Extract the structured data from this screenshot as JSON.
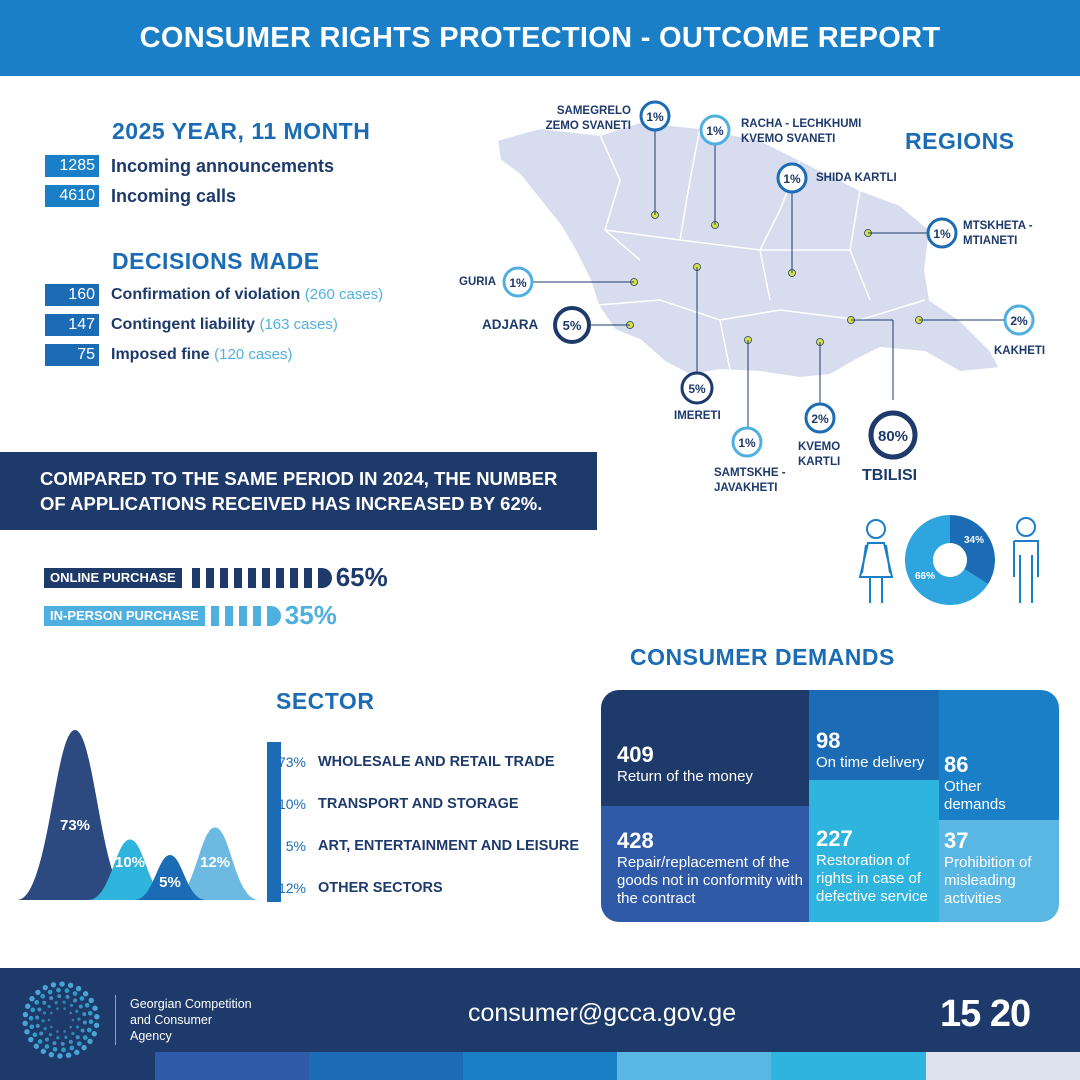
{
  "header": {
    "title": "CONSUMER RIGHTS PROTECTION - OUTCOME REPORT"
  },
  "period": {
    "title": "2025 YEAR, 11 MONTH",
    "items": [
      {
        "value": "1285",
        "label": "Incoming announcements"
      },
      {
        "value": "4610",
        "label": "Incoming calls"
      }
    ]
  },
  "decisions": {
    "title": "DECISIONS MADE",
    "items": [
      {
        "value": "160",
        "label": "Confirmation of violation",
        "note": "(260 cases)"
      },
      {
        "value": "147",
        "label": "Contingent liability",
        "note": "(163 cases)"
      },
      {
        "value": "75",
        "label": "Imposed fine",
        "note": "(120  cases)"
      }
    ]
  },
  "comparison": {
    "line1": "COMPARED TO THE SAME PERIOD IN 2024, THE NUMBER",
    "line2": "OF APPLICATIONS RECEIVED HAS INCREASED BY 62%."
  },
  "purchase": {
    "online": {
      "label": "ONLINE PURCHASE",
      "percent": "65%",
      "value": 65
    },
    "in_person": {
      "label": "IN-PERSON PURCHASE",
      "percent": "35%",
      "value": 35
    }
  },
  "regions": {
    "title": "REGIONS",
    "items": [
      {
        "name": "SAMEGRELO",
        "name2": "ZEMO SVANETI",
        "percent": "1%"
      },
      {
        "name": "RACHA - LECHKHUMI",
        "name2": "KVEMO SVANETI",
        "percent": "1%"
      },
      {
        "name": "SHIDA KARTLI",
        "name2": "",
        "percent": "1%"
      },
      {
        "name": "MTSKHETA -",
        "name2": "MTIANETI",
        "percent": "1%"
      },
      {
        "name": "GURIA",
        "name2": "",
        "percent": "1%"
      },
      {
        "name": "ADJARA",
        "name2": "",
        "percent": "5%"
      },
      {
        "name": "KAKHETI",
        "name2": "",
        "percent": "2%"
      },
      {
        "name": "IMERETI",
        "name2": "",
        "percent": "5%"
      },
      {
        "name": "SAMTSKHE -",
        "name2": "JAVAKHETI",
        "percent": "1%"
      },
      {
        "name": "KVEMO",
        "name2": "KARTLI",
        "percent": "2%"
      },
      {
        "name": "TBILISI",
        "name2": "",
        "percent": "80%"
      }
    ]
  },
  "gender": {
    "female_percent": "66%",
    "male_percent": "34%",
    "female": 66,
    "male": 34
  },
  "sector": {
    "title": "SECTOR",
    "items": [
      {
        "percent": "73%",
        "label": "WHOLESALE AND RETAIL TRADE",
        "value": 73,
        "color": "#2c4a80"
      },
      {
        "percent": "10%",
        "label": "TRANSPORT AND STORAGE",
        "value": 10,
        "color": "#2fb4dd"
      },
      {
        "percent": "5%",
        "label": "ART, ENTERTAINMENT AND LEISURE",
        "value": 5,
        "color": "#1b6cb4"
      },
      {
        "percent": "12%",
        "label": "OTHER SECTORS",
        "value": 12,
        "color": "#6cb9e2"
      }
    ]
  },
  "demands": {
    "title": "CONSUMER DEMANDS",
    "items": [
      {
        "value": "409",
        "label": "Return of the money"
      },
      {
        "value": "98",
        "label": "On time delivery"
      },
      {
        "value": "86",
        "label": "Other demands"
      },
      {
        "value": "428",
        "label": "Repair/replacement of the goods not in conformity with the contract"
      },
      {
        "value": "227",
        "label": "Restoration of rights in case of defective service"
      },
      {
        "value": "37",
        "label": "Prohibition of misleading activities"
      }
    ]
  },
  "footer": {
    "org_line1": "Georgian Competition",
    "org_line2": "and Consumer",
    "org_line3": "Agency",
    "email": "consumer@gcca.gov.ge",
    "hotline": "15 20"
  },
  "colors": {
    "navy": "#1e3a6b",
    "blue": "#1a7fc6",
    "light": "#4fb0e0",
    "cyan": "#2fb4dd"
  }
}
